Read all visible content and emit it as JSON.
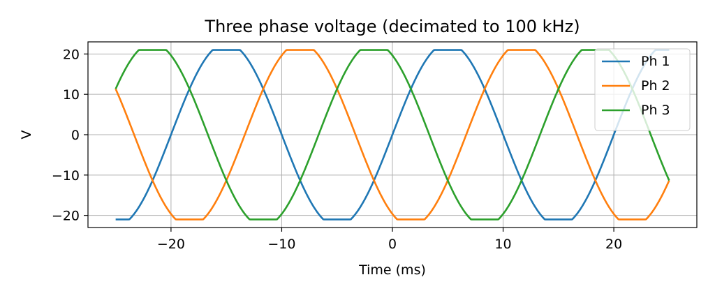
{
  "chart_data": {
    "type": "line",
    "title": "Three phase voltage (decimated to 100 kHz)",
    "xlabel": "Time (ms)",
    "ylabel": "V",
    "xlim": [
      -27.5,
      27.5
    ],
    "ylim": [
      -23,
      23
    ],
    "xticks": [
      -20,
      -10,
      0,
      10,
      20
    ],
    "xtick_labels": [
      "−20",
      "−10",
      "0",
      "10",
      "20"
    ],
    "yticks": [
      20,
      10,
      0,
      -10,
      -20
    ],
    "ytick_labels": [
      "20",
      "10",
      "0",
      "−10",
      "−20"
    ],
    "grid": true,
    "legend_position": "top-right",
    "signal": {
      "frequency_hz": 50,
      "amplitude_v": 21,
      "flattened": true,
      "t_start_ms": -25,
      "t_end_ms": 25
    },
    "series": [
      {
        "name": "Ph 1",
        "color": "#1f77b4",
        "phase_deg": 0
      },
      {
        "name": "Ph 2",
        "color": "#ff7f0e",
        "phase_deg": 120
      },
      {
        "name": "Ph 3",
        "color": "#2ca02c",
        "phase_deg": 240
      }
    ]
  }
}
